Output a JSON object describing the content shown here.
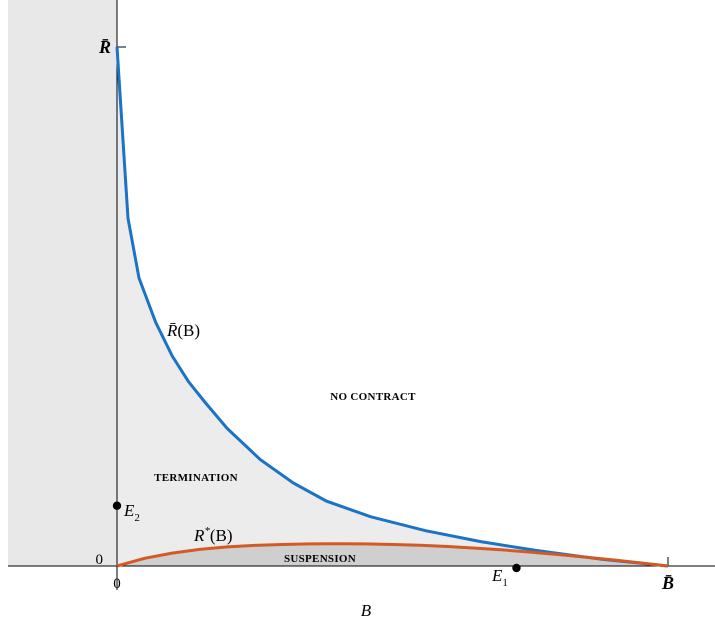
{
  "chart_data": {
    "type": "line",
    "xlabel": "B",
    "x_ticks": [
      "0"
    ],
    "y_ticks": [
      "0"
    ],
    "x_end_label": "B̄",
    "y_end_label": "R̄",
    "xlim": [
      0,
      1
    ],
    "ylim": [
      0,
      1
    ],
    "series": [
      {
        "name": "R̄(B)",
        "label_main": "R̄",
        "label_arg": "(B)",
        "color": "#1a73c4",
        "x": [
          0,
          0.02,
          0.04,
          0.07,
          0.1,
          0.13,
          0.16,
          0.2,
          0.26,
          0.32,
          0.38,
          0.46,
          0.56,
          0.66,
          0.76,
          0.88,
          1.0
        ],
        "y": [
          1.0,
          0.67,
          0.555,
          0.47,
          0.405,
          0.355,
          0.315,
          0.265,
          0.205,
          0.16,
          0.125,
          0.095,
          0.068,
          0.047,
          0.03,
          0.013,
          0.0
        ]
      },
      {
        "name": "R*(B)",
        "label_main": "R",
        "label_sup": "*",
        "label_arg": "(B)",
        "color": "#d35a24",
        "x": [
          0,
          0.05,
          0.1,
          0.15,
          0.2,
          0.25,
          0.3,
          0.35,
          0.4,
          0.45,
          0.5,
          0.55,
          0.6,
          0.65,
          0.7,
          0.75,
          0.8,
          0.85,
          0.9,
          0.95,
          1.0
        ],
        "y": [
          0.0,
          0.0148,
          0.0248,
          0.032,
          0.0368,
          0.0396,
          0.0415,
          0.0425,
          0.0428,
          0.0425,
          0.0415,
          0.0398,
          0.0375,
          0.0345,
          0.031,
          0.0268,
          0.0222,
          0.0172,
          0.0118,
          0.006,
          0.0
        ]
      }
    ],
    "regions": [
      {
        "name": "NO CONTRACT",
        "label": "NO CONTRACT"
      },
      {
        "name": "TERMINATION",
        "label": "TERMINATION"
      },
      {
        "name": "SUSPENSION",
        "label": "SUSPENSION"
      }
    ],
    "points": [
      {
        "name": "E1",
        "main": "E",
        "sub": "1",
        "x": 0.725,
        "y": 0.0
      },
      {
        "name": "E2",
        "main": "E",
        "sub": "2",
        "x": 0.0,
        "y": 0.12
      }
    ],
    "grid": false,
    "legend": "none",
    "colors": {
      "shade_left": "#e8e8e8",
      "shade_termination": "#ececec",
      "shade_suspension": "#cfcfcf",
      "axis": "#000000"
    }
  }
}
